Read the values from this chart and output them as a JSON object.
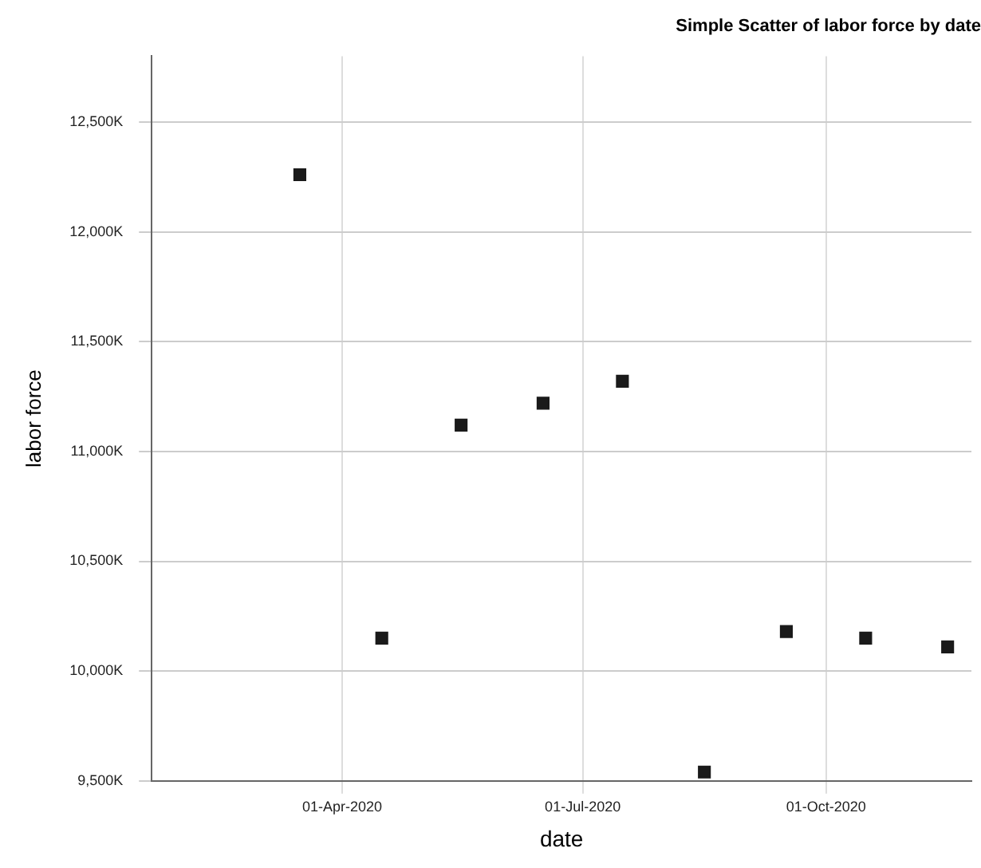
{
  "chart_data": {
    "type": "scatter",
    "title": "Simple Scatter of labor force by date",
    "xlabel": "date",
    "ylabel": "labor force",
    "x": [
      "2020-03-16",
      "2020-04-16",
      "2020-05-16",
      "2020-06-16",
      "2020-07-16",
      "2020-08-16",
      "2020-09-16",
      "2020-10-16",
      "2020-11-16"
    ],
    "series": [
      {
        "color": "#1a1a1a",
        "values": [
          12260,
          10150,
          11120,
          11220,
          11320,
          9540,
          10180,
          10150,
          10110
        ]
      }
    ],
    "xlim": [
      "2020-01-20",
      "2020-11-25"
    ],
    "xticks": [
      {
        "value": "2020-04-01",
        "label": "01-Apr-2020"
      },
      {
        "value": "2020-07-01",
        "label": "01-Jul-2020"
      },
      {
        "value": "2020-10-01",
        "label": "01-Oct-2020"
      }
    ],
    "ylim": [
      9500,
      12800
    ],
    "yticks": [
      {
        "value": 9500,
        "label": "9,500K"
      },
      {
        "value": 10000,
        "label": "10,000K"
      },
      {
        "value": 10500,
        "label": "10,500K"
      },
      {
        "value": 11000,
        "label": "11,000K"
      },
      {
        "value": 11500,
        "label": "11,500K"
      },
      {
        "value": 12000,
        "label": "12,000K"
      },
      {
        "value": 12500,
        "label": "12,500K"
      }
    ],
    "grid": true,
    "legend": false,
    "marker": "square"
  }
}
